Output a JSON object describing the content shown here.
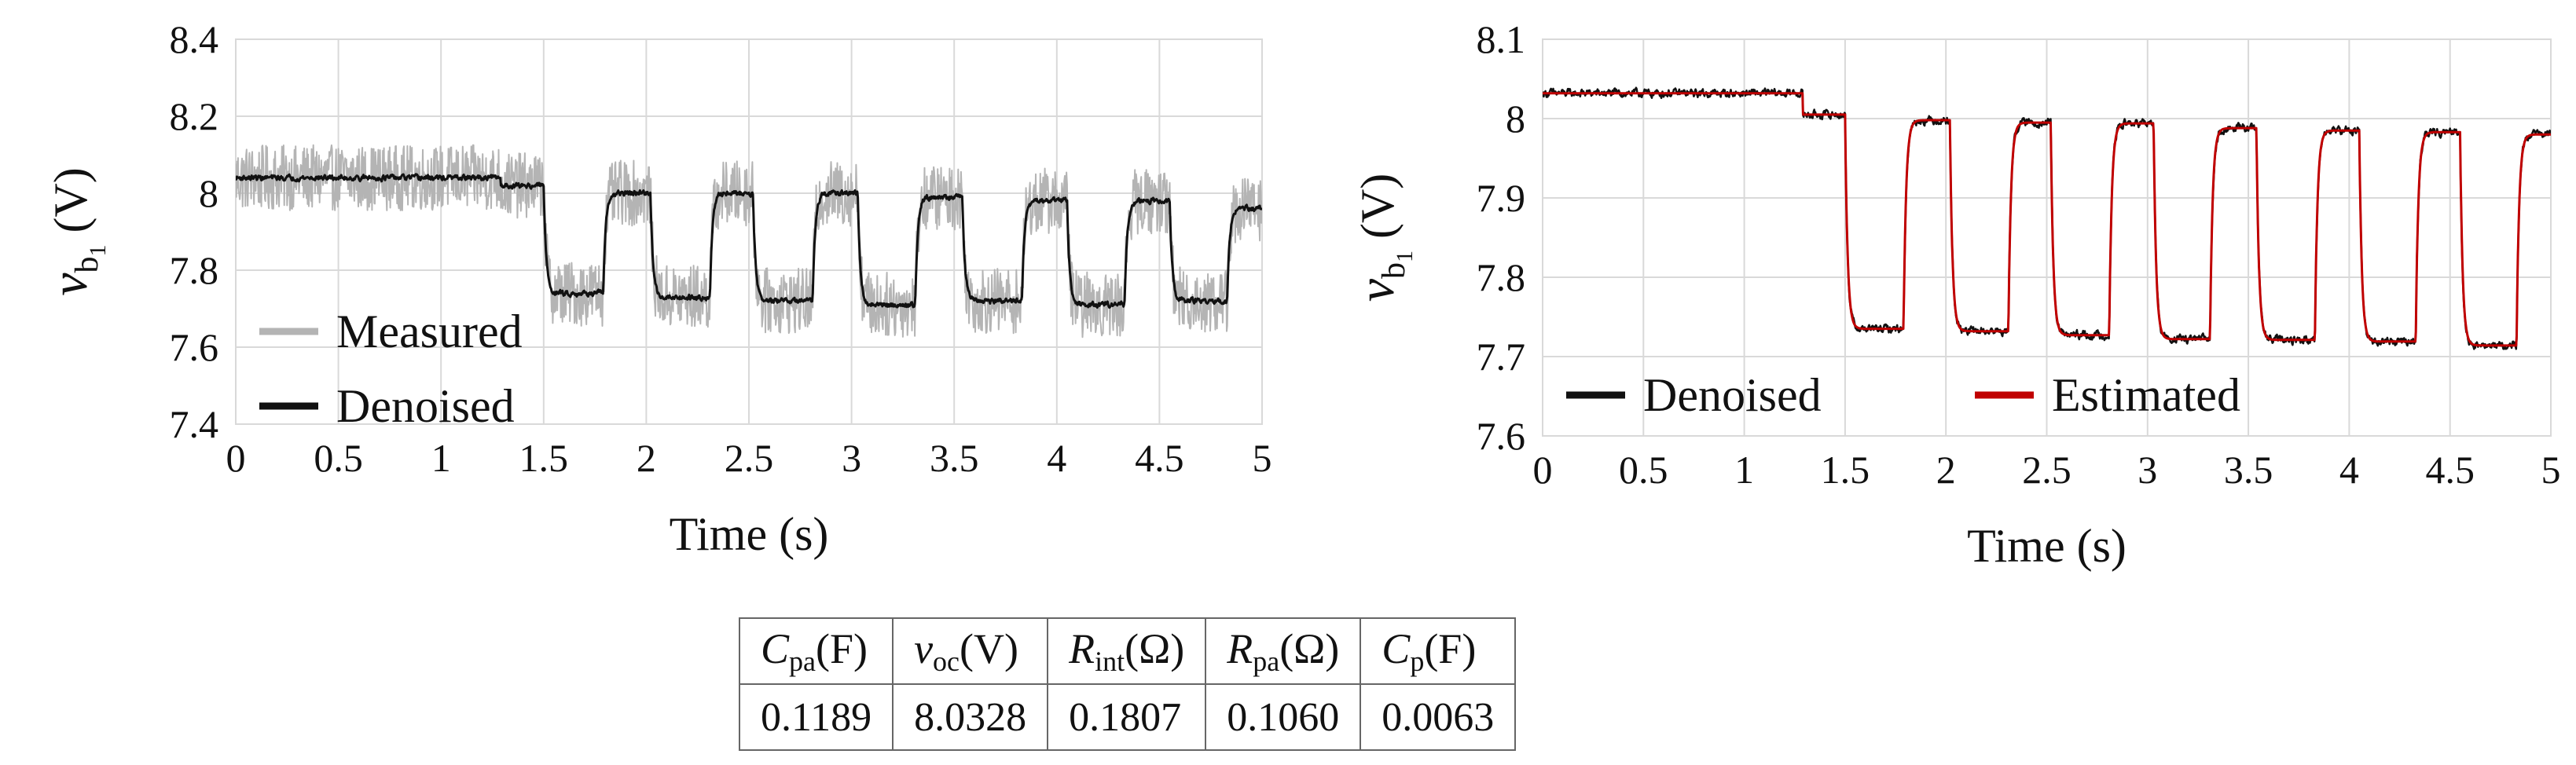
{
  "chart_data": [
    {
      "type": "line",
      "title": "",
      "xlabel": "Time (s)",
      "ylabel": "v_b1 (V)",
      "ylabel_var": "v",
      "ylabel_sub": "b",
      "ylabel_subsub": "1",
      "ylabel_unit": "(V)",
      "xlim": [
        0,
        5
      ],
      "ylim": [
        7.4,
        8.4
      ],
      "xticks": [
        "0",
        "0.5",
        "1",
        "1.5",
        "2",
        "2.5",
        "3",
        "3.5",
        "4",
        "4.5",
        "5"
      ],
      "yticks": [
        "7.4",
        "7.6",
        "7.8",
        "8",
        "8.2",
        "8.4"
      ],
      "grid": true,
      "legend_position": "bottom-left",
      "pulse": {
        "flat_until": 1.29,
        "flat_level": 8.04,
        "mid_step_until": 1.5,
        "mid_level": 8.02,
        "segments_t": [
          1.5,
          1.79,
          2.02,
          2.31,
          2.52,
          2.81,
          3.03,
          3.31,
          3.54,
          3.83,
          4.05,
          4.33,
          4.55,
          4.83,
          5.0
        ],
        "low_levels": [
          7.74,
          7.73,
          7.72,
          7.71,
          7.72,
          7.71,
          7.72
        ],
        "high_levels": [
          8.0,
          8.0,
          8.0,
          7.99,
          7.98,
          7.98,
          7.96
        ],
        "tau_s": 0.012
      },
      "series": [
        {
          "name": "Measured",
          "color": "#b4b4b4",
          "noise_amplitude_v": 0.085,
          "width": 2
        },
        {
          "name": "Denoised",
          "color": "#111111",
          "noise_amplitude_v": 0.012,
          "width": 3
        }
      ]
    },
    {
      "type": "line",
      "title": "",
      "xlabel": "Time (s)",
      "ylabel": "v_b1 (V)",
      "ylabel_var": "v",
      "ylabel_sub": "b",
      "ylabel_subsub": "1",
      "ylabel_unit": "(V)",
      "xlim": [
        0,
        5
      ],
      "ylim": [
        7.6,
        8.1
      ],
      "xticks": [
        "0",
        "0.5",
        "1",
        "1.5",
        "2",
        "2.5",
        "3",
        "3.5",
        "4",
        "4.5",
        "5"
      ],
      "yticks": [
        "7.6",
        "7.7",
        "7.8",
        "7.9",
        "8",
        "8.1"
      ],
      "grid": true,
      "legend_position": "bottom",
      "pulse": {
        "flat_until": 1.29,
        "flat_level": 8.032,
        "mid_step_until": 1.5,
        "mid_level": 8.005,
        "segments_t": [
          1.5,
          1.79,
          2.02,
          2.31,
          2.52,
          2.81,
          3.03,
          3.31,
          3.54,
          3.83,
          4.05,
          4.33,
          4.55,
          4.83,
          5.0
        ],
        "low_levels": [
          7.735,
          7.732,
          7.727,
          7.722,
          7.721,
          7.719,
          7.714
        ],
        "high_levels": [
          7.998,
          7.995,
          7.994,
          7.988,
          7.985,
          7.983,
          7.98
        ],
        "tau_s": 0.012
      },
      "series": [
        {
          "name": "Denoised",
          "color": "#111111",
          "noise_amplitude_v": 0.009,
          "width": 2.5
        },
        {
          "name": "Estimated",
          "color": "#c00000",
          "noise_amplitude_v": 0.0,
          "width": 3
        }
      ]
    }
  ],
  "parameter_table": {
    "headers": [
      {
        "symbol": "C",
        "sub": "pa",
        "unit": "(F)"
      },
      {
        "symbol": "v",
        "sub": "oc",
        "unit": "(V)"
      },
      {
        "symbol": "R",
        "sub": "int",
        "unit": "(Ω)"
      },
      {
        "symbol": "R",
        "sub": "pa",
        "unit": "(Ω)"
      },
      {
        "symbol": "C",
        "sub": "p",
        "unit": "(F)"
      }
    ],
    "values": [
      "0.1189",
      "8.0328",
      "0.1807",
      "0.1060",
      "0.0063"
    ]
  }
}
